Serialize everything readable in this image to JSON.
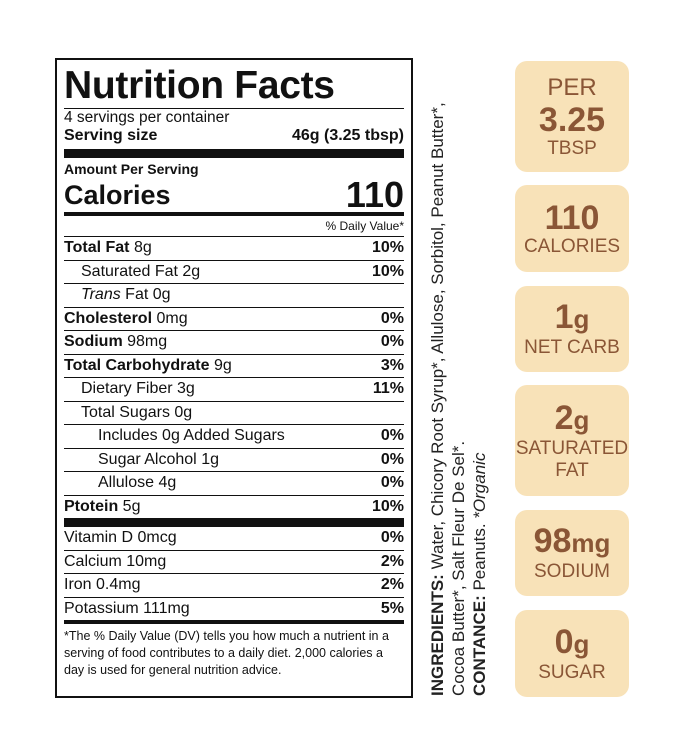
{
  "label": {
    "title": "Nutrition Facts",
    "servings": "4 servings per container",
    "serving_size_label": "Serving size",
    "serving_size_value": "46g (3.25 tbsp)",
    "amount_per_serving": "Amount Per Serving",
    "calories_label": "Calories",
    "calories_value": "110",
    "dv_header": "% Daily Value*",
    "rows": [
      {
        "name": "Total Fat",
        "amount": "8g",
        "pct": "10%"
      },
      {
        "name": "Saturated Fat",
        "amount": "2g",
        "pct": "10%"
      },
      {
        "name": "Trans",
        "amount": "Fat 0g",
        "pct": ""
      },
      {
        "name": "Cholesterol",
        "amount": "0mg",
        "pct": "0%"
      },
      {
        "name": "Sodium",
        "amount": "98mg",
        "pct": "0%"
      },
      {
        "name": "Total Carbohydrate",
        "amount": "9g",
        "pct": "3%"
      },
      {
        "name": "Dietary Fiber",
        "amount": "3g",
        "pct": "11%"
      },
      {
        "name": "Total Sugars",
        "amount": "0g",
        "pct": ""
      },
      {
        "name": "Includes 0g Added Sugars",
        "amount": "",
        "pct": "0%"
      },
      {
        "name": "Sugar Alcohol",
        "amount": "1g",
        "pct": "0%"
      },
      {
        "name": "Allulose",
        "amount": "4g",
        "pct": "0%"
      },
      {
        "name": "Ptotein",
        "amount": "5g",
        "pct": "10%"
      }
    ],
    "vitamins": [
      {
        "name": "Vitamin D 0mcg",
        "pct": "0%"
      },
      {
        "name": "Calcium 10mg",
        "pct": "2%"
      },
      {
        "name": "Iron 0.4mg",
        "pct": "2%"
      },
      {
        "name": "Potassium 111mg",
        "pct": "5%"
      }
    ],
    "footnote": "*The % Daily Value (DV) tells you how much a nutrient in a serving of food contributes to a daily diet. 2,000 calories a day is used for general nutrition advice."
  },
  "ingredients": {
    "label": "INGREDIENTS:",
    "text": "Water, Chicory Root Syrup*, Allulose, Sorbitol, Peanut Butter*, Cocoa Butter*, Salt Fleur De Sel*.",
    "contains_label": "CONTANCE:",
    "contains_text": "Peanuts.",
    "organic_note": "*Organic"
  },
  "badges": {
    "per": {
      "top": "PER",
      "value": "3.25",
      "bottom": "TBSP"
    },
    "calories": {
      "value": "110",
      "label": "CALORIES"
    },
    "carb": {
      "value": "1",
      "unit": "g",
      "label": "NET CARB"
    },
    "satfat": {
      "value": "2",
      "unit": "g",
      "label_1": "SATURATED",
      "label_2": "FAT"
    },
    "sodium": {
      "value": "98",
      "unit": "mg",
      "label": "SODIUM"
    },
    "sugar": {
      "value": "0",
      "unit": "g",
      "label": "SUGAR"
    }
  },
  "colors": {
    "badge_bg": "#f8e2b8",
    "badge_text": "#8a5636"
  }
}
